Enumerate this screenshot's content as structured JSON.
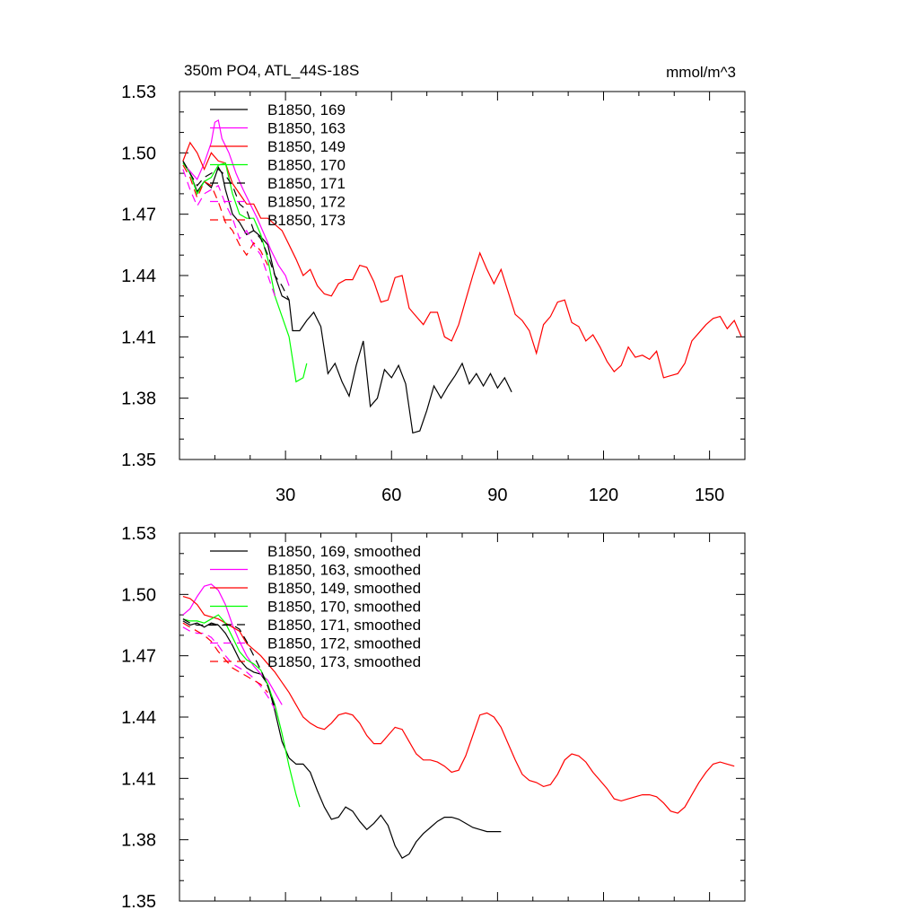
{
  "chart_data": [
    {
      "type": "line",
      "title": "350m PO4, ATL_44S-18S",
      "units": "mmol/m^3",
      "xlim": [
        0,
        160
      ],
      "ylim": [
        1.35,
        1.53
      ],
      "xticks": [
        "30",
        "60",
        "90",
        "120",
        "150"
      ],
      "yticks": [
        "1.35",
        "1.38",
        "1.41",
        "1.44",
        "1.47",
        "1.50",
        "1.53"
      ],
      "grid": false,
      "legend_position": "top-left",
      "series": [
        {
          "name": "B1850, 169",
          "color": "#000000",
          "dash": "solid",
          "x": [
            1,
            3,
            5,
            7,
            9,
            11,
            12,
            13,
            15,
            17,
            19,
            21,
            23,
            25,
            27,
            29,
            31,
            32,
            34,
            36,
            38,
            40,
            42,
            44,
            46,
            48,
            50,
            52,
            54,
            56,
            58,
            60,
            62,
            64,
            66,
            68,
            70,
            72,
            74,
            76,
            78,
            80,
            82,
            84,
            86,
            88,
            90,
            92,
            94
          ],
          "y": [
            1.496,
            1.49,
            1.481,
            1.486,
            1.483,
            1.493,
            1.49,
            1.482,
            1.47,
            1.466,
            1.46,
            1.462,
            1.459,
            1.455,
            1.44,
            1.43,
            1.428,
            1.413,
            1.413,
            1.418,
            1.422,
            1.415,
            1.392,
            1.397,
            1.388,
            1.381,
            1.396,
            1.408,
            1.376,
            1.38,
            1.394,
            1.39,
            1.396,
            1.387,
            1.363,
            1.364,
            1.374,
            1.386,
            1.38,
            1.386,
            1.391,
            1.397,
            1.387,
            1.392,
            1.386,
            1.392,
            1.385,
            1.39,
            1.383
          ]
        },
        {
          "name": "B1850, 163",
          "color": "#ff00ff",
          "dash": "solid",
          "x": [
            1,
            3,
            5,
            7,
            9,
            10,
            11,
            12,
            14,
            16,
            18,
            20,
            22,
            24,
            26,
            28,
            30,
            31
          ],
          "y": [
            1.495,
            1.491,
            1.487,
            1.495,
            1.505,
            1.515,
            1.516,
            1.507,
            1.5,
            1.49,
            1.482,
            1.475,
            1.468,
            1.46,
            1.452,
            1.445,
            1.44,
            1.435
          ]
        },
        {
          "name": "B1850, 149",
          "color": "#ff0000",
          "dash": "solid",
          "x": [
            1,
            3,
            5,
            7,
            9,
            11,
            13,
            15,
            17,
            19,
            21,
            23,
            25,
            27,
            29,
            31,
            33,
            35,
            37,
            39,
            41,
            43,
            45,
            47,
            49,
            51,
            53,
            55,
            57,
            59,
            61,
            63,
            65,
            67,
            69,
            71,
            73,
            75,
            77,
            79,
            81,
            83,
            85,
            87,
            89,
            91,
            93,
            95,
            97,
            99,
            101,
            103,
            105,
            107,
            109,
            111,
            113,
            115,
            117,
            119,
            121,
            123,
            125,
            127,
            129,
            131,
            133,
            135,
            137,
            139,
            141,
            143,
            145,
            147,
            149,
            151,
            153,
            155,
            157,
            159
          ],
          "y": [
            1.496,
            1.505,
            1.5,
            1.492,
            1.5,
            1.496,
            1.495,
            1.485,
            1.48,
            1.475,
            1.475,
            1.468,
            1.468,
            1.465,
            1.462,
            1.455,
            1.448,
            1.44,
            1.443,
            1.435,
            1.431,
            1.43,
            1.436,
            1.438,
            1.438,
            1.445,
            1.444,
            1.437,
            1.427,
            1.428,
            1.439,
            1.44,
            1.424,
            1.42,
            1.416,
            1.422,
            1.422,
            1.41,
            1.408,
            1.416,
            1.428,
            1.44,
            1.451,
            1.443,
            1.436,
            1.443,
            1.432,
            1.421,
            1.418,
            1.413,
            1.402,
            1.416,
            1.42,
            1.427,
            1.428,
            1.417,
            1.415,
            1.408,
            1.411,
            1.405,
            1.398,
            1.393,
            1.396,
            1.405,
            1.4,
            1.401,
            1.399,
            1.403,
            1.39,
            1.391,
            1.392,
            1.397,
            1.408,
            1.412,
            1.416,
            1.419,
            1.42,
            1.414,
            1.418,
            1.41
          ]
        },
        {
          "name": "B1850, 170",
          "color": "#00ff00",
          "dash": "solid",
          "x": [
            1,
            3,
            5,
            7,
            9,
            11,
            13,
            15,
            17,
            19,
            21,
            23,
            25,
            27,
            29,
            31,
            33,
            35,
            36
          ],
          "y": [
            1.495,
            1.49,
            1.48,
            1.486,
            1.488,
            1.494,
            1.495,
            1.48,
            1.47,
            1.468,
            1.468,
            1.46,
            1.448,
            1.43,
            1.42,
            1.41,
            1.388,
            1.39,
            1.397
          ]
        },
        {
          "name": "B1850, 171",
          "color": "#000000",
          "dash": "dashed",
          "x": [
            1,
            3,
            5,
            7,
            9,
            11,
            13,
            15,
            17,
            19,
            21,
            23,
            25,
            27,
            29,
            31
          ],
          "y": [
            1.496,
            1.49,
            1.484,
            1.488,
            1.49,
            1.492,
            1.489,
            1.484,
            1.475,
            1.472,
            1.462,
            1.458,
            1.45,
            1.44,
            1.435,
            1.428
          ]
        },
        {
          "name": "B1850, 172",
          "color": "#ff00ff",
          "dash": "dashed",
          "x": [
            1,
            3,
            5,
            7,
            9,
            11,
            13,
            15,
            17,
            19,
            21,
            23,
            25,
            27
          ],
          "y": [
            1.492,
            1.482,
            1.474,
            1.48,
            1.482,
            1.484,
            1.475,
            1.468,
            1.458,
            1.462,
            1.455,
            1.45,
            1.44,
            1.43
          ]
        },
        {
          "name": "B1850, 173",
          "color": "#ff0000",
          "dash": "dashed",
          "x": [
            1,
            3,
            5,
            7,
            9,
            11,
            13,
            15,
            17,
            19,
            21,
            23,
            25
          ],
          "y": [
            1.494,
            1.488,
            1.478,
            1.486,
            1.484,
            1.476,
            1.466,
            1.462,
            1.455,
            1.45,
            1.456,
            1.452,
            1.445
          ]
        }
      ]
    },
    {
      "type": "line",
      "title": "",
      "xlim": [
        0,
        160
      ],
      "ylim": [
        1.35,
        1.53
      ],
      "yticks": [
        "1.35",
        "1.38",
        "1.41",
        "1.44",
        "1.47",
        "1.50",
        "1.53"
      ],
      "grid": false,
      "legend_position": "top-left",
      "series": [
        {
          "name": "B1850, 169, smoothed",
          "color": "#000000",
          "dash": "solid",
          "x": [
            1,
            3,
            5,
            7,
            9,
            11,
            13,
            15,
            17,
            19,
            21,
            23,
            25,
            27,
            29,
            31,
            33,
            35,
            37,
            39,
            41,
            43,
            45,
            47,
            49,
            51,
            53,
            55,
            57,
            59,
            61,
            63,
            65,
            67,
            69,
            71,
            73,
            75,
            77,
            79,
            81,
            83,
            85,
            87,
            89,
            91
          ],
          "y": [
            1.487,
            1.485,
            1.486,
            1.484,
            1.486,
            1.485,
            1.481,
            1.475,
            1.468,
            1.464,
            1.462,
            1.461,
            1.456,
            1.443,
            1.428,
            1.42,
            1.417,
            1.417,
            1.413,
            1.404,
            1.396,
            1.39,
            1.391,
            1.396,
            1.394,
            1.389,
            1.385,
            1.388,
            1.392,
            1.387,
            1.377,
            1.371,
            1.373,
            1.379,
            1.383,
            1.386,
            1.389,
            1.391,
            1.391,
            1.39,
            1.388,
            1.386,
            1.385,
            1.384,
            1.384,
            1.384
          ]
        },
        {
          "name": "B1850, 163, smoothed",
          "color": "#ff00ff",
          "dash": "solid",
          "x": [
            1,
            3,
            5,
            7,
            9,
            11,
            13,
            15,
            17,
            19,
            21,
            23,
            25,
            27,
            29
          ],
          "y": [
            1.49,
            1.493,
            1.499,
            1.504,
            1.505,
            1.502,
            1.495,
            1.485,
            1.477,
            1.47,
            1.465,
            1.461,
            1.458,
            1.452,
            1.446
          ]
        },
        {
          "name": "B1850, 149, smoothed",
          "color": "#ff0000",
          "dash": "solid",
          "x": [
            1,
            3,
            5,
            7,
            9,
            11,
            13,
            15,
            17,
            19,
            21,
            23,
            25,
            27,
            29,
            31,
            33,
            35,
            37,
            39,
            41,
            43,
            45,
            47,
            49,
            51,
            53,
            55,
            57,
            59,
            61,
            63,
            65,
            67,
            69,
            71,
            73,
            75,
            77,
            79,
            81,
            83,
            85,
            87,
            89,
            91,
            93,
            95,
            97,
            99,
            101,
            103,
            105,
            107,
            109,
            111,
            113,
            115,
            117,
            119,
            121,
            123,
            125,
            127,
            129,
            131,
            133,
            135,
            137,
            139,
            141,
            143,
            145,
            147,
            149,
            151,
            153,
            155,
            157
          ],
          "y": [
            1.499,
            1.498,
            1.495,
            1.49,
            1.489,
            1.488,
            1.486,
            1.484,
            1.482,
            1.476,
            1.473,
            1.47,
            1.466,
            1.462,
            1.457,
            1.452,
            1.446,
            1.44,
            1.437,
            1.435,
            1.434,
            1.437,
            1.441,
            1.442,
            1.441,
            1.437,
            1.431,
            1.427,
            1.427,
            1.431,
            1.435,
            1.434,
            1.428,
            1.422,
            1.419,
            1.419,
            1.418,
            1.416,
            1.413,
            1.414,
            1.421,
            1.431,
            1.441,
            1.442,
            1.44,
            1.435,
            1.427,
            1.419,
            1.412,
            1.409,
            1.408,
            1.406,
            1.407,
            1.412,
            1.419,
            1.422,
            1.421,
            1.418,
            1.413,
            1.409,
            1.405,
            1.4,
            1.399,
            1.4,
            1.401,
            1.402,
            1.402,
            1.401,
            1.398,
            1.394,
            1.393,
            1.396,
            1.402,
            1.408,
            1.413,
            1.417,
            1.418,
            1.417,
            1.416
          ]
        },
        {
          "name": "B1850, 170, smoothed",
          "color": "#00ff00",
          "dash": "solid",
          "x": [
            1,
            3,
            5,
            7,
            9,
            11,
            13,
            15,
            17,
            19,
            21,
            23,
            25,
            27,
            29,
            31,
            33,
            34
          ],
          "y": [
            1.488,
            1.487,
            1.487,
            1.486,
            1.488,
            1.49,
            1.486,
            1.479,
            1.472,
            1.468,
            1.466,
            1.463,
            1.456,
            1.446,
            1.432,
            1.416,
            1.402,
            1.396
          ]
        },
        {
          "name": "B1850, 171, smoothed",
          "color": "#000000",
          "dash": "dashed",
          "x": [
            1,
            3,
            5,
            7,
            9,
            11,
            13,
            15,
            17,
            19,
            21,
            23,
            25,
            27
          ],
          "y": [
            1.488,
            1.486,
            1.485,
            1.485,
            1.485,
            1.485,
            1.485,
            1.485,
            1.483,
            1.477,
            1.47,
            1.463,
            1.455,
            1.445
          ]
        },
        {
          "name": "B1850, 172, smoothed",
          "color": "#ff00ff",
          "dash": "dashed",
          "x": [
            1,
            3,
            5,
            7,
            9,
            11,
            13,
            15,
            17,
            19,
            21,
            23,
            25,
            27
          ],
          "y": [
            1.484,
            1.482,
            1.481,
            1.481,
            1.479,
            1.475,
            1.47,
            1.466,
            1.464,
            1.462,
            1.459,
            1.455,
            1.45,
            1.444
          ]
        },
        {
          "name": "B1850, 173, smoothed",
          "color": "#ff0000",
          "dash": "dashed",
          "x": [
            1,
            3,
            5,
            7,
            9,
            11,
            13,
            15,
            17,
            19,
            21,
            23,
            25
          ],
          "y": [
            1.486,
            1.484,
            1.482,
            1.48,
            1.477,
            1.472,
            1.468,
            1.464,
            1.462,
            1.46,
            1.458,
            1.456,
            1.452
          ]
        }
      ]
    }
  ]
}
